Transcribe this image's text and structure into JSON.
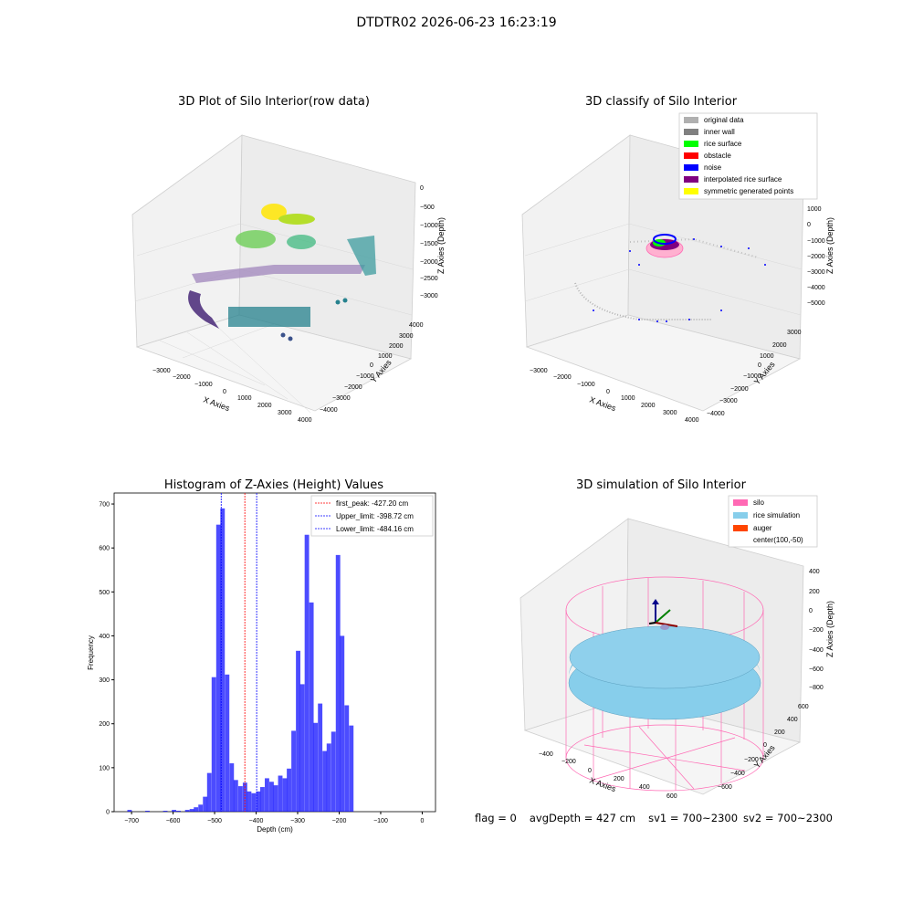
{
  "figure_title": "DTDTR02 2026-06-23 16:23:19",
  "footer": {
    "flag": "flag = 0",
    "avg_depth": "avgDepth = 427 cm",
    "sv1": "sv1 = 700~2300",
    "sv2": "sv2 = 700~2300"
  },
  "colors": {
    "hist_bar": "#0000ff",
    "first_peak_line": "#ff0000",
    "limit_line": "#0000ff",
    "silo": "#ff69b4",
    "rice_simulation": "#87ceeb",
    "auger": "#ff4500"
  },
  "chart_data": [
    {
      "type": "scatter",
      "title": "3D Plot of Silo Interior(row data)",
      "xlabel": "X Axies",
      "ylabel": "Y Axies",
      "zlabel": "Z Axies (Depth)",
      "x_ticks": [
        "−3000",
        "−2000",
        "−1000",
        "0",
        "1000",
        "2000",
        "3000",
        "4000"
      ],
      "y_ticks": [
        "4000",
        "3000",
        "2000",
        "1000",
        "0",
        "−1000",
        "−2000",
        "−3000",
        "−4000"
      ],
      "z_ticks": [
        "0",
        "−500",
        "−1000",
        "−1500",
        "−2000",
        "−2500",
        "−3000"
      ],
      "colormap": "viridis",
      "grid": true
    },
    {
      "type": "scatter",
      "title": "3D classify of Silo Interior",
      "xlabel": "X Axies",
      "ylabel": "Y Axies",
      "zlabel": "Z Axies (Depth)",
      "x_ticks": [
        "−3000",
        "−2000",
        "−1000",
        "0",
        "1000",
        "2000",
        "3000",
        "4000"
      ],
      "y_ticks": [
        "3000",
        "2000",
        "1000",
        "0",
        "−1000",
        "−2000",
        "−3000",
        "−4000"
      ],
      "z_ticks": [
        "1000",
        "0",
        "−1000",
        "−2000",
        "−3000",
        "−4000",
        "−5000"
      ],
      "legend": [
        {
          "label": "original data",
          "color": "#b0b0b0"
        },
        {
          "label": "inner wall",
          "color": "#808080"
        },
        {
          "label": "rice surface",
          "color": "#00ff00"
        },
        {
          "label": "obstacle",
          "color": "#ff0000"
        },
        {
          "label": "noise",
          "color": "#0000ff"
        },
        {
          "label": "interpolated rice surface",
          "color": "#800080"
        },
        {
          "label": "symmetric generated points",
          "color": "#ffff00"
        }
      ],
      "legend_position": "top-right",
      "grid": true
    },
    {
      "type": "bar",
      "title": "Histogram of Z-Axies (Height) Values",
      "xlabel": "Depth (cm)",
      "ylabel": "Frequency",
      "xlim": [
        -742,
        32
      ],
      "ylim": [
        0,
        725
      ],
      "x_ticks": [
        -700,
        -600,
        -500,
        -400,
        -300,
        -200,
        -100,
        0
      ],
      "y_ticks": [
        0,
        100,
        200,
        300,
        400,
        500,
        600,
        700
      ],
      "bin_width": 10.7,
      "bins": [
        {
          "x": -710,
          "value": 0
        },
        {
          "x": -699,
          "value": 0
        },
        {
          "x": -688,
          "value": 0
        },
        {
          "x": -678,
          "value": 4
        },
        {
          "x": -667,
          "value": 0
        },
        {
          "x": -656,
          "value": 0
        },
        {
          "x": -646,
          "value": 0
        },
        {
          "x": -635,
          "value": 2
        },
        {
          "x": -624,
          "value": 0
        },
        {
          "x": -614,
          "value": 0
        },
        {
          "x": -603,
          "value": 0
        },
        {
          "x": -592,
          "value": 2
        },
        {
          "x": -582,
          "value": 0
        },
        {
          "x": -571,
          "value": 4
        },
        {
          "x": -560,
          "value": 2
        },
        {
          "x": -550,
          "value": 0
        },
        {
          "x": -539,
          "value": 4
        },
        {
          "x": -528,
          "value": 6
        },
        {
          "x": -518,
          "value": 10
        },
        {
          "x": -507,
          "value": 16
        },
        {
          "x": -496,
          "value": 34
        },
        {
          "x": -486,
          "value": 88
        },
        {
          "x": -475,
          "value": 306
        },
        {
          "x": -464,
          "value": 653
        },
        {
          "x": -454,
          "value": 690
        },
        {
          "x": -443,
          "value": 312
        },
        {
          "x": -432,
          "value": 110
        },
        {
          "x": -422,
          "value": 72
        },
        {
          "x": -411,
          "value": 58
        },
        {
          "x": -400,
          "value": 66
        },
        {
          "x": -390,
          "value": 46
        },
        {
          "x": -379,
          "value": 42
        },
        {
          "x": -368,
          "value": 46
        },
        {
          "x": -358,
          "value": 56
        },
        {
          "x": -347,
          "value": 76
        },
        {
          "x": -336,
          "value": 68
        },
        {
          "x": -326,
          "value": 60
        },
        {
          "x": -315,
          "value": 82
        },
        {
          "x": -304,
          "value": 76
        },
        {
          "x": -294,
          "value": 98
        },
        {
          "x": -283,
          "value": 184
        },
        {
          "x": -272,
          "value": 366
        },
        {
          "x": -262,
          "value": 290
        },
        {
          "x": -251,
          "value": 630
        },
        {
          "x": -240,
          "value": 476
        },
        {
          "x": -230,
          "value": 202
        },
        {
          "x": -219,
          "value": 246
        },
        {
          "x": -208,
          "value": 138
        },
        {
          "x": -198,
          "value": 155
        },
        {
          "x": -187,
          "value": 182
        },
        {
          "x": -176,
          "value": 584
        },
        {
          "x": -166,
          "value": 400
        },
        {
          "x": -155,
          "value": 242
        },
        {
          "x": -144,
          "value": 196
        }
      ],
      "vlines": [
        {
          "label": "first_peak: -427.20 cm",
          "x": -427.2,
          "color": "#ff0000"
        },
        {
          "label": "Upper_limit: -398.72 cm",
          "x": -398.72,
          "color": "#0000ff"
        },
        {
          "label": "Lower_limit: -484.16 cm",
          "x": -484.16,
          "color": "#0000ff"
        }
      ],
      "legend_position": "top-right"
    },
    {
      "type": "surface",
      "title": "3D simulation of Silo Interior",
      "xlabel": "X Axies",
      "ylabel": "Y Axies",
      "zlabel": "Z Axies (Depth)",
      "x_ticks": [
        "−400",
        "−200",
        "0",
        "200",
        "400",
        "600"
      ],
      "y_ticks": [
        "600",
        "400",
        "200",
        "0",
        "−200",
        "−400",
        "−600"
      ],
      "z_ticks": [
        "400",
        "200",
        "0",
        "−200",
        "−400",
        "−600",
        "−800"
      ],
      "legend": [
        {
          "label": "silo",
          "color": "#ff69b4"
        },
        {
          "label": "rice simulation",
          "color": "#87ceeb"
        },
        {
          "label": "auger",
          "color": "#ff4500"
        },
        {
          "label": "center(100,-50)",
          "color": ""
        }
      ],
      "legend_position": "top-right",
      "grid": true
    }
  ]
}
